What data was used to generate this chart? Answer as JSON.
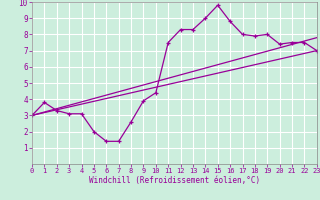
{
  "xlabel": "Windchill (Refroidissement éolien,°C)",
  "bg_color": "#cceedd",
  "grid_color": "#ffffff",
  "line_color": "#990099",
  "line1_x": [
    0,
    1,
    2,
    3,
    4,
    5,
    6,
    7,
    8,
    9,
    10,
    11,
    12,
    13,
    14,
    15,
    16,
    17,
    18,
    19,
    20,
    21,
    22,
    23
  ],
  "line1_y": [
    3.0,
    3.8,
    3.3,
    3.1,
    3.1,
    2.0,
    1.4,
    1.4,
    2.6,
    3.9,
    4.4,
    7.5,
    8.3,
    8.3,
    9.0,
    9.8,
    8.8,
    8.0,
    7.9,
    8.0,
    7.4,
    7.5,
    7.5,
    7.0
  ],
  "line2_x": [
    0,
    23
  ],
  "line2_y": [
    3.0,
    7.0
  ],
  "line3_x": [
    0,
    23
  ],
  "line3_y": [
    3.0,
    7.8
  ],
  "xmin": 0,
  "xmax": 23,
  "ymin": 0,
  "ymax": 10,
  "xticks": [
    0,
    1,
    2,
    3,
    4,
    5,
    6,
    7,
    8,
    9,
    10,
    11,
    12,
    13,
    14,
    15,
    16,
    17,
    18,
    19,
    20,
    21,
    22,
    23
  ],
  "yticks": [
    1,
    2,
    3,
    4,
    5,
    6,
    7,
    8,
    9,
    10
  ],
  "tick_fontsize": 5.0,
  "xlabel_fontsize": 5.5
}
